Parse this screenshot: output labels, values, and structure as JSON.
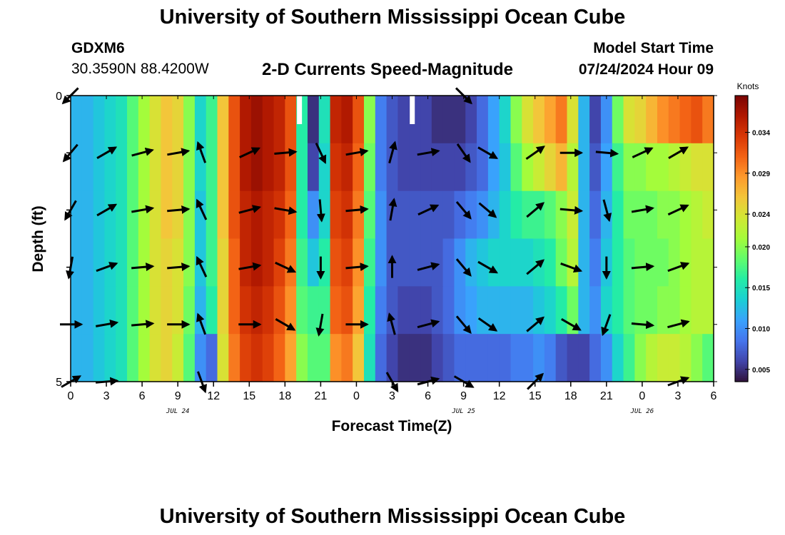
{
  "header": {
    "title": "University of Southern Mississippi Ocean Cube",
    "station": "GDXM6",
    "coordinates": "30.3590N  88.4200W",
    "subtitle": "2-D Currents Speed-Magnitude",
    "model_start_label": "Model Start Time",
    "model_start_value": "07/24/2024 Hour 09"
  },
  "footer": {
    "title": "University of Southern Mississippi Ocean Cube"
  },
  "chart_data": {
    "type": "heatmap",
    "title": "2-D Currents Speed-Magnitude",
    "xlabel": "Forecast Time(Z)",
    "ylabel": "Depth (ft)",
    "x_tick_labels": [
      "0",
      "3",
      "6",
      "9",
      "12",
      "15",
      "18",
      "21",
      "0",
      "3",
      "6",
      "9",
      "12",
      "15",
      "18",
      "21",
      "0",
      "3",
      "6"
    ],
    "date_labels": [
      {
        "label": "JUL 24",
        "at_tick": 3
      },
      {
        "label": "JUL 25",
        "at_tick": 11
      },
      {
        "label": "JUL 26",
        "at_tick": 16
      }
    ],
    "y_tick_labels": [
      "0",
      "5"
    ],
    "ylim": [
      0,
      5
    ],
    "colorbar": {
      "label": "Knots",
      "ticks": [
        "0.005",
        "0.010",
        "0.015",
        "0.020",
        "0.024",
        "0.029",
        "0.034"
      ],
      "range": [
        0.0035,
        0.0385
      ],
      "palette": [
        "#30123b",
        "#4145ab",
        "#4675ed",
        "#39a2fc",
        "#1bcfd4",
        "#24eca6",
        "#61fc6c",
        "#a4fc3b",
        "#d1e834",
        "#f3c63a",
        "#fe9b2d",
        "#f36315",
        "#d93806",
        "#b11901",
        "#7a0403"
      ]
    },
    "speed_knots": [
      [
        0.012,
        0.012,
        0.013,
        0.014,
        0.015,
        0.018,
        0.021,
        0.024,
        0.026,
        0.025,
        0.02,
        0.014,
        0.017,
        0.026,
        0.032,
        0.036,
        0.037,
        0.036,
        0.035,
        0.032,
        0.016,
        0.005,
        0.015,
        0.035,
        0.036,
        0.032,
        0.02,
        0.009,
        0.007,
        0.006,
        0.006,
        0.006,
        0.005,
        0.005,
        0.005,
        0.006,
        0.008,
        0.011,
        0.014,
        0.02,
        0.024,
        0.026,
        0.028,
        0.03,
        0.024,
        0.012,
        0.006,
        0.01,
        0.019,
        0.024,
        0.025,
        0.027,
        0.029,
        0.03,
        0.031,
        0.032,
        0.03
      ],
      [
        0.012,
        0.012,
        0.013,
        0.014,
        0.015,
        0.018,
        0.021,
        0.024,
        0.026,
        0.025,
        0.02,
        0.014,
        0.017,
        0.026,
        0.032,
        0.036,
        0.037,
        0.036,
        0.035,
        0.032,
        0.016,
        0.006,
        0.014,
        0.034,
        0.035,
        0.031,
        0.019,
        0.009,
        0.007,
        0.006,
        0.006,
        0.006,
        0.006,
        0.006,
        0.006,
        0.007,
        0.008,
        0.011,
        0.013,
        0.018,
        0.021,
        0.023,
        0.025,
        0.027,
        0.022,
        0.012,
        0.007,
        0.011,
        0.017,
        0.02,
        0.02,
        0.021,
        0.021,
        0.022,
        0.023,
        0.024,
        0.024
      ],
      [
        0.012,
        0.012,
        0.013,
        0.014,
        0.015,
        0.018,
        0.021,
        0.024,
        0.026,
        0.025,
        0.02,
        0.013,
        0.017,
        0.026,
        0.032,
        0.035,
        0.036,
        0.035,
        0.034,
        0.031,
        0.016,
        0.01,
        0.014,
        0.033,
        0.034,
        0.03,
        0.018,
        0.01,
        0.007,
        0.007,
        0.007,
        0.007,
        0.007,
        0.007,
        0.008,
        0.009,
        0.01,
        0.012,
        0.014,
        0.016,
        0.017,
        0.017,
        0.018,
        0.02,
        0.023,
        0.012,
        0.008,
        0.012,
        0.016,
        0.019,
        0.019,
        0.019,
        0.02,
        0.02,
        0.021,
        0.022,
        0.023
      ],
      [
        0.012,
        0.012,
        0.013,
        0.014,
        0.015,
        0.018,
        0.021,
        0.024,
        0.025,
        0.024,
        0.02,
        0.013,
        0.017,
        0.025,
        0.031,
        0.035,
        0.036,
        0.035,
        0.033,
        0.03,
        0.017,
        0.013,
        0.016,
        0.032,
        0.033,
        0.029,
        0.017,
        0.01,
        0.007,
        0.007,
        0.007,
        0.007,
        0.007,
        0.008,
        0.01,
        0.012,
        0.013,
        0.014,
        0.014,
        0.014,
        0.014,
        0.015,
        0.016,
        0.019,
        0.022,
        0.012,
        0.009,
        0.013,
        0.016,
        0.018,
        0.019,
        0.019,
        0.019,
        0.02,
        0.021,
        0.022,
        0.022
      ],
      [
        0.012,
        0.012,
        0.013,
        0.014,
        0.015,
        0.018,
        0.021,
        0.024,
        0.025,
        0.024,
        0.019,
        0.012,
        0.016,
        0.025,
        0.031,
        0.034,
        0.035,
        0.034,
        0.032,
        0.029,
        0.018,
        0.017,
        0.017,
        0.031,
        0.032,
        0.028,
        0.016,
        0.009,
        0.007,
        0.006,
        0.006,
        0.006,
        0.007,
        0.008,
        0.01,
        0.011,
        0.012,
        0.012,
        0.012,
        0.012,
        0.012,
        0.013,
        0.014,
        0.016,
        0.019,
        0.012,
        0.01,
        0.014,
        0.016,
        0.018,
        0.019,
        0.019,
        0.02,
        0.02,
        0.021,
        0.022,
        0.022
      ],
      [
        0.012,
        0.012,
        0.013,
        0.014,
        0.015,
        0.018,
        0.021,
        0.024,
        0.025,
        0.023,
        0.018,
        0.01,
        0.008,
        0.024,
        0.03,
        0.033,
        0.034,
        0.033,
        0.031,
        0.028,
        0.02,
        0.018,
        0.018,
        0.029,
        0.03,
        0.026,
        0.015,
        0.008,
        0.006,
        0.005,
        0.005,
        0.005,
        0.006,
        0.007,
        0.008,
        0.008,
        0.008,
        0.008,
        0.008,
        0.009,
        0.009,
        0.01,
        0.009,
        0.007,
        0.006,
        0.006,
        0.008,
        0.01,
        0.014,
        0.017,
        0.02,
        0.022,
        0.023,
        0.023,
        0.022,
        0.02,
        0.018
      ]
    ],
    "vector_times_hours": [
      0,
      3,
      6,
      9,
      11,
      15,
      18,
      21,
      24,
      27,
      30,
      33,
      35,
      39,
      42,
      45,
      48,
      51
    ],
    "vectors_deg": [
      [
        225,
        null,
        null,
        null,
        null,
        null,
        null,
        null,
        null,
        null,
        null,
        135,
        null,
        null,
        null,
        null,
        null,
        null
      ],
      [
        220,
        60,
        75,
        80,
        340,
        65,
        85,
        155,
        80,
        15,
        80,
        145,
        120,
        55,
        90,
        95,
        65,
        60
      ],
      [
        210,
        60,
        80,
        85,
        335,
        75,
        100,
        175,
        85,
        10,
        65,
        140,
        130,
        50,
        95,
        165,
        80,
        65
      ],
      [
        190,
        70,
        85,
        85,
        335,
        80,
        115,
        180,
        85,
        0,
        75,
        140,
        120,
        50,
        110,
        180,
        85,
        70
      ],
      [
        90,
        80,
        85,
        90,
        340,
        90,
        120,
        190,
        90,
        345,
        75,
        140,
        125,
        50,
        120,
        200,
        95,
        75
      ],
      [
        60,
        85,
        null,
        null,
        160,
        null,
        null,
        null,
        null,
        150,
        75,
        120,
        null,
        45,
        null,
        null,
        null,
        70
      ]
    ],
    "missing_cells": [
      {
        "col": 20,
        "row": 0
      },
      {
        "col": 30,
        "row": 0
      }
    ],
    "legend": "right"
  }
}
